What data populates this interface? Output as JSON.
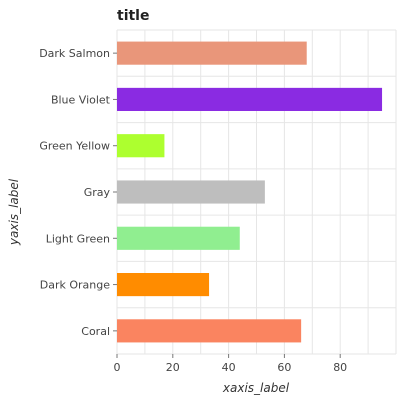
{
  "chart_data": {
    "type": "bar",
    "orientation": "horizontal",
    "title": "title",
    "xlabel": "xaxis_label",
    "ylabel": "yaxis_label",
    "categories": [
      "Coral",
      "Dark Orange",
      "Light Green",
      "Gray",
      "Green Yellow",
      "Blue Violet",
      "Dark Salmon"
    ],
    "values": [
      66,
      33,
      44,
      53,
      17,
      95,
      68
    ],
    "colors": [
      "#fa8460",
      "#ff8c00",
      "#90ee90",
      "#bebebe",
      "#adff2f",
      "#8a2be2",
      "#e9967a"
    ],
    "xlim": [
      0,
      100
    ],
    "xticks": [
      0,
      20,
      40,
      60,
      80
    ],
    "grid": true
  }
}
